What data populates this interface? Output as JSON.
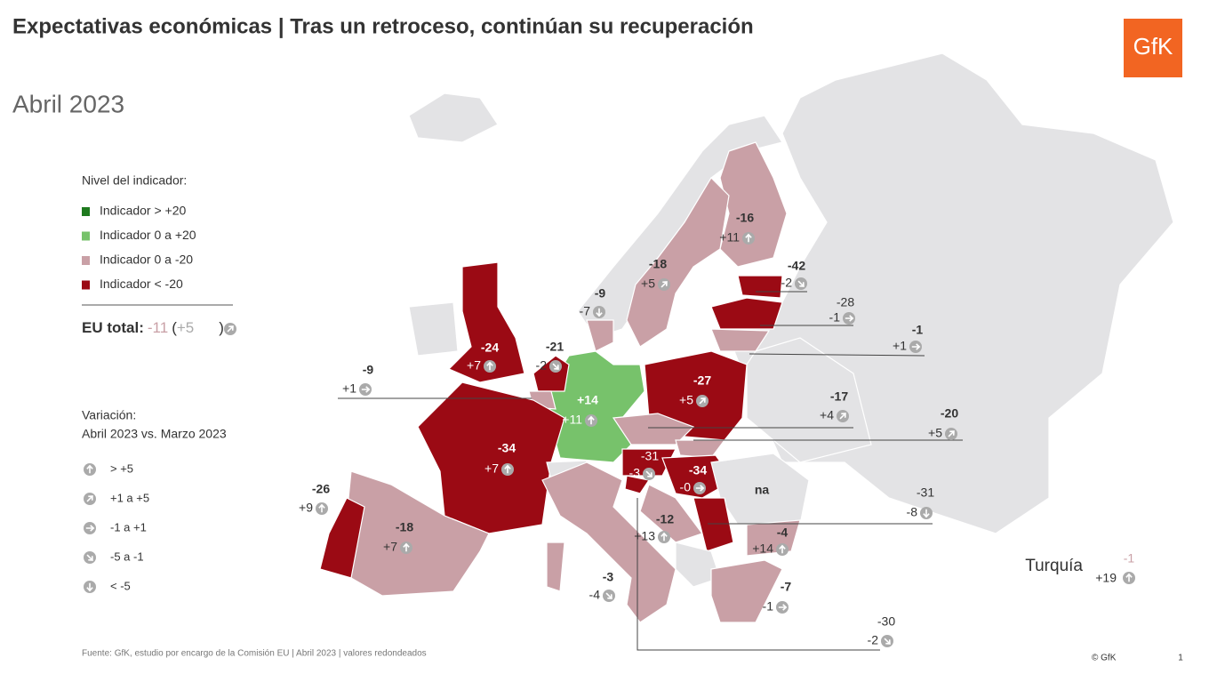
{
  "header": {
    "title": "Expectativas económicas | Tras un retroceso, continúan su recuperación",
    "subtitle": "Abril 2023",
    "logo": "GfK"
  },
  "legend_level": {
    "title": "Nivel del indicador:",
    "items": [
      "Indicador > +20",
      "Indicador 0 a +20",
      "Indicador 0 a -20",
      "Indicador < -20"
    ]
  },
  "eu_total": {
    "label": "EU total:",
    "value": "-11",
    "open": "(",
    "change": "+5",
    "close": ")"
  },
  "legend_variation": {
    "title": "Variación:",
    "subtitle": "Abril 2023 vs. Marzo 2023",
    "items": [
      "> +5",
      "+1 a +5",
      "-1 a +1",
      "-5 a -1",
      "< -5"
    ]
  },
  "countries": [
    {
      "value": "-16",
      "change": "+11"
    },
    {
      "value": "-18",
      "change": "+5"
    },
    {
      "value": "-9",
      "change": "-7"
    },
    {
      "value": "-42",
      "change": "-2"
    },
    {
      "value": "-28",
      "change": "-1"
    },
    {
      "value": "-1",
      "change": "+1"
    },
    {
      "value": "-24",
      "change": "+7"
    },
    {
      "value": "-21",
      "change": "-2"
    },
    {
      "value": "-9",
      "change": "+1"
    },
    {
      "value": "+14",
      "change": "+11"
    },
    {
      "value": "-27",
      "change": "+5"
    },
    {
      "value": "-17",
      "change": "+4"
    },
    {
      "value": "-20",
      "change": "+5"
    },
    {
      "value": "-34",
      "change": "+7"
    },
    {
      "value": "-31",
      "change": "-3"
    },
    {
      "value": "-34",
      "change": "-0"
    },
    {
      "value": "-31",
      "change": "-8"
    },
    {
      "value": "-26",
      "change": "+9"
    },
    {
      "value": "-18",
      "change": "+7"
    },
    {
      "value": "-12",
      "change": "+13"
    },
    {
      "value": "-4",
      "change": "+14"
    },
    {
      "value": "-3",
      "change": "-4"
    },
    {
      "value": "-7",
      "change": "-1"
    },
    {
      "value": "-30",
      "change": "-2"
    }
  ],
  "na_label": "na",
  "turkey": {
    "name": "Turquía",
    "value": "-1",
    "change": "+19"
  },
  "footer": {
    "source": "Fuente: GfK, estudio por encargo de la Comisión  EU  | Abril 2023 | valores redondeados",
    "copyright": "© GfK",
    "page": "1"
  }
}
